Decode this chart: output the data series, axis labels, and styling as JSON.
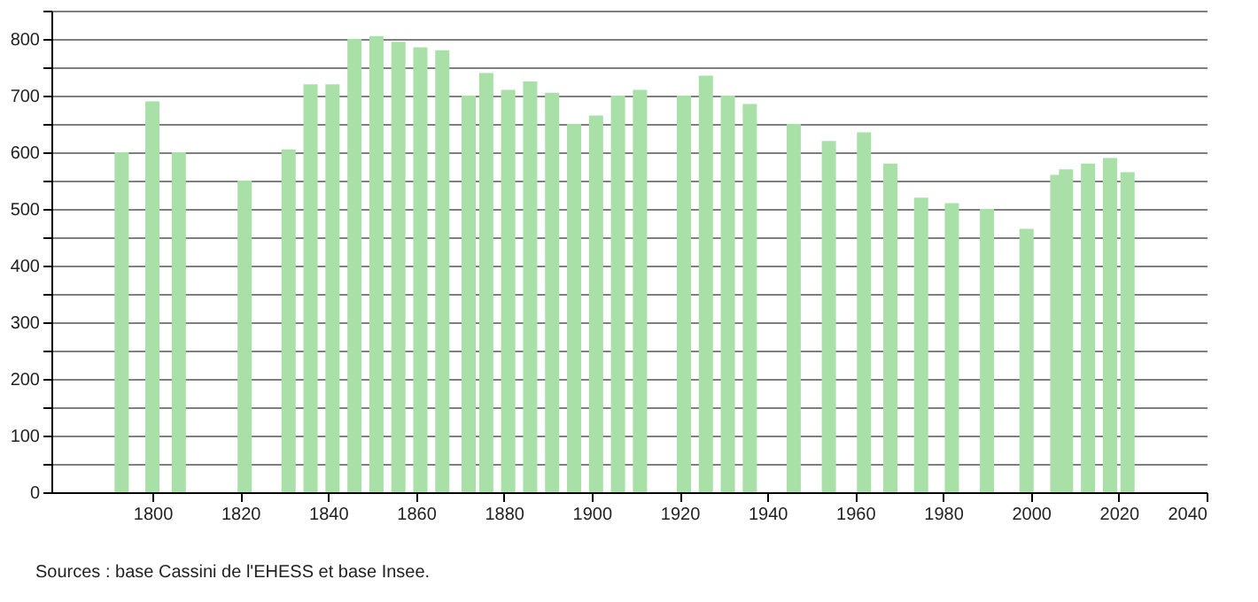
{
  "chart_data": {
    "type": "bar",
    "x": [
      1793,
      1800,
      1806,
      1821,
      1831,
      1836,
      1841,
      1846,
      1851,
      1856,
      1861,
      1866,
      1872,
      1876,
      1881,
      1886,
      1891,
      1896,
      1901,
      1906,
      1911,
      1921,
      1926,
      1931,
      1936,
      1946,
      1954,
      1962,
      1968,
      1975,
      1982,
      1990,
      1999,
      2006,
      2008,
      2013,
      2018,
      2022
    ],
    "values": [
      600,
      690,
      600,
      550,
      605,
      720,
      720,
      800,
      805,
      795,
      785,
      780,
      700,
      740,
      710,
      725,
      705,
      650,
      665,
      700,
      710,
      700,
      735,
      700,
      685,
      650,
      620,
      635,
      580,
      520,
      510,
      500,
      465,
      560,
      570,
      580,
      590,
      565
    ],
    "color": "#a8e0a8",
    "xlim": [
      1777,
      2040
    ],
    "xticks": [
      1800,
      1820,
      1840,
      1860,
      1880,
      1900,
      1920,
      1940,
      1960,
      1980,
      2000,
      2020,
      2040
    ],
    "ylim": [
      0,
      850
    ],
    "yticks": [
      0,
      {
        "value": 50,
        "label": null
      },
      100,
      {
        "value": 150,
        "label": null
      },
      200,
      {
        "value": 250,
        "label": null
      },
      300,
      {
        "value": 350,
        "label": null
      },
      400,
      {
        "value": 450,
        "label": null
      },
      500,
      {
        "value": 550,
        "label": null
      },
      600,
      {
        "value": 650,
        "label": null
      },
      700,
      {
        "value": 750,
        "label": null
      },
      800,
      {
        "value": 850,
        "label": null
      }
    ],
    "grid": "y",
    "annotations": [
      "Sources : base Cassini de l'EHESS et base Insee."
    ]
  }
}
